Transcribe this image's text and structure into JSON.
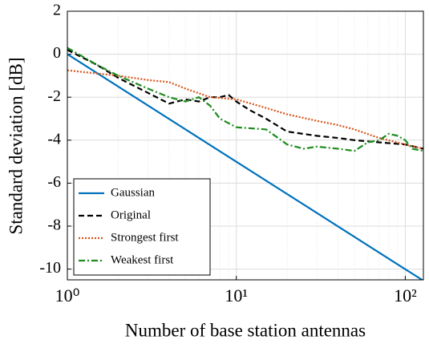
{
  "chart_data": {
    "type": "line",
    "xlabel": "Number of base station antennas",
    "ylabel": "Standard deviation [dB]",
    "xscale": "log",
    "xlim": [
      1,
      128
    ],
    "ylim": [
      -10.5,
      2
    ],
    "xticks": [
      {
        "value": 1,
        "label": "10⁰"
      },
      {
        "value": 10,
        "label": "10¹"
      },
      {
        "value": 100,
        "label": "10²"
      }
    ],
    "yticks": [
      2,
      0,
      -2,
      -4,
      -6,
      -8,
      -10
    ],
    "grid": true,
    "legend": "lower left",
    "series": [
      {
        "name": "Gaussian",
        "color": "#0072bd",
        "dash": "solid",
        "x": [
          1,
          128
        ],
        "values": [
          0,
          -10.54
        ]
      },
      {
        "name": "Original",
        "color": "#000000",
        "dash": "dashed",
        "x": [
          1,
          1.5,
          2,
          3,
          4,
          5,
          6,
          7,
          8,
          9,
          10,
          12,
          15,
          20,
          30,
          40,
          50,
          70,
          100,
          128
        ],
        "values": [
          0.2,
          -0.5,
          -1.1,
          -1.8,
          -2.3,
          -2.1,
          -2.2,
          -2.0,
          -2.0,
          -1.9,
          -2.2,
          -2.6,
          -3.0,
          -3.6,
          -3.8,
          -3.9,
          -4.0,
          -4.1,
          -4.2,
          -4.4
        ]
      },
      {
        "name": "Strongest first",
        "color": "#d95319",
        "dash": "dotted",
        "x": [
          1,
          1.5,
          2,
          3,
          4,
          5,
          7,
          10,
          15,
          20,
          30,
          40,
          50,
          70,
          100,
          128
        ],
        "values": [
          -0.75,
          -0.9,
          -1.0,
          -1.2,
          -1.3,
          -1.6,
          -2.0,
          -2.1,
          -2.5,
          -2.8,
          -3.1,
          -3.3,
          -3.5,
          -3.9,
          -4.2,
          -4.4
        ]
      },
      {
        "name": "Weakest first",
        "color": "#1e8c1e",
        "dash": "dashdot",
        "x": [
          1,
          1.5,
          2,
          3,
          4,
          5,
          6,
          7,
          8,
          10,
          15,
          20,
          25,
          30,
          40,
          50,
          60,
          70,
          80,
          90,
          100,
          110,
          128
        ],
        "values": [
          0.3,
          -0.5,
          -1.0,
          -1.6,
          -2.0,
          -2.2,
          -2.0,
          -2.4,
          -3.0,
          -3.4,
          -3.5,
          -4.2,
          -4.4,
          -4.3,
          -4.4,
          -4.5,
          -4.1,
          -4.0,
          -3.7,
          -3.8,
          -4.0,
          -4.4,
          -4.5
        ]
      }
    ]
  }
}
